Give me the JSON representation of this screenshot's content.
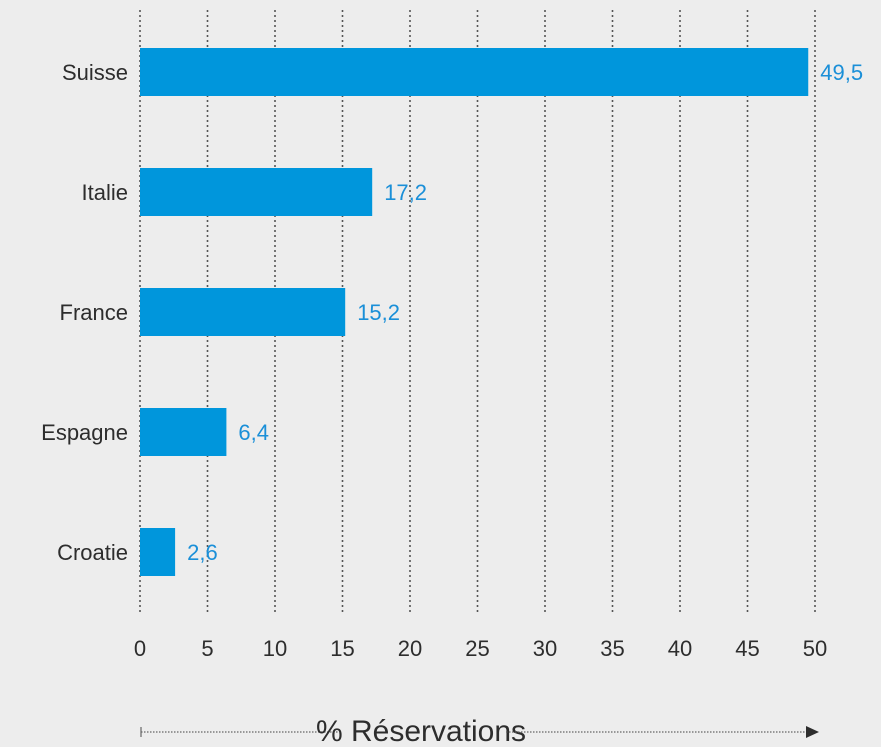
{
  "chart_data": {
    "type": "bar",
    "orientation": "horizontal",
    "categories": [
      "Suisse",
      "Italie",
      "France",
      "Espagne",
      "Croatie"
    ],
    "values": [
      49.5,
      17.2,
      15.2,
      6.4,
      2.6
    ],
    "value_labels": [
      "49,5",
      "17,2",
      "15,2",
      "6,4",
      "2,6"
    ],
    "title": "",
    "xlabel": "% Réservations",
    "ylabel": "",
    "xlim": [
      0,
      50
    ],
    "xticks": [
      0,
      5,
      10,
      15,
      20,
      25,
      30,
      35,
      40,
      45,
      50
    ],
    "grid": "vertical dotted",
    "legend": "none",
    "colors": {
      "bar": "#0096dc",
      "value_label": "#1a8fd8",
      "text": "#2d2d2d",
      "background": "#ededed"
    }
  }
}
